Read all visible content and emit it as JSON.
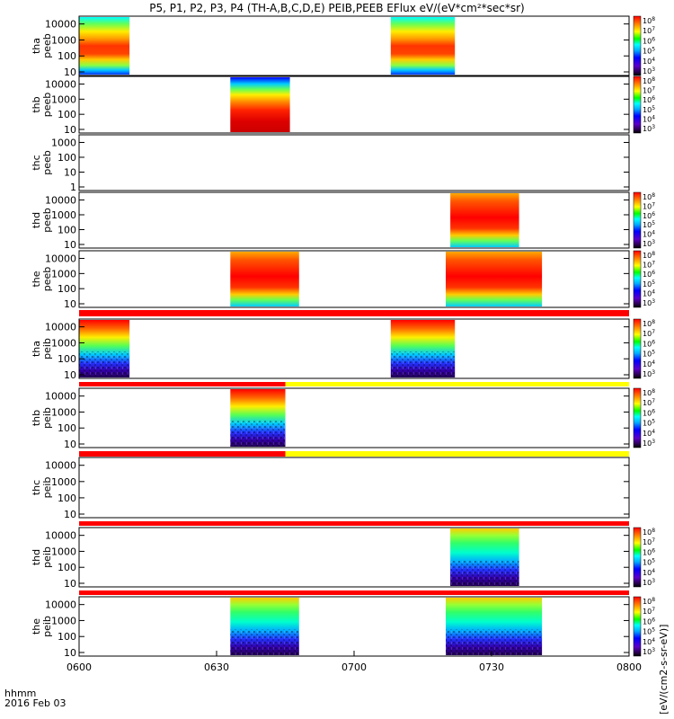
{
  "chart_data": {
    "type": "heatmap",
    "title": "P5, P1, P2, P3, P4 (TH-A,B,C,D,E) PEIB,PEEB EFlux eV/(eV*cm²*sec*sr)",
    "x_ticks": [
      "0600",
      "0630",
      "0700",
      "0730",
      "0800"
    ],
    "x_range": [
      "06:00",
      "08:00"
    ],
    "x_label_line1": "hhmm",
    "x_label_line2": "2016 Feb 03",
    "colorbar_label": "eV/(cm2-s-sr-eV)",
    "colorbar_label_full": "[eV/(cm2-s-sr-eV)]",
    "colorbar_exp_ticks": [
      "3",
      "4",
      "5",
      "6",
      "7",
      "8"
    ],
    "panels": [
      {
        "probe": "tha",
        "label1": "tha",
        "label2": "peeb",
        "y_ticks": [
          "10",
          "100",
          "1000",
          "10000"
        ],
        "intervals": [
          [
            "06:00",
            "06:11"
          ],
          [
            "07:08",
            "07:22"
          ]
        ],
        "style": "hot"
      },
      {
        "probe": "thb",
        "label1": "thb",
        "label2": "peeb",
        "y_ticks": [
          "10",
          "100",
          "1000",
          "10000"
        ],
        "intervals": [
          [
            "06:33",
            "06:46"
          ]
        ],
        "style": "hot"
      },
      {
        "probe": "thc",
        "label1": "thc",
        "label2": "peeb",
        "y_ticks": [
          "1",
          "10",
          "100",
          "1000"
        ],
        "intervals": [],
        "style": "none"
      },
      {
        "probe": "thd",
        "label1": "thd",
        "label2": "peeb",
        "y_ticks": [
          "10",
          "100",
          "1000",
          "10000"
        ],
        "intervals": [
          [
            "07:21",
            "07:36"
          ]
        ],
        "style": "hot"
      },
      {
        "probe": "the",
        "label1": "the",
        "label2": "peeb",
        "y_ticks": [
          "10",
          "100",
          "1000",
          "10000"
        ],
        "intervals": [
          [
            "06:33",
            "06:48"
          ],
          [
            "07:20",
            "07:41"
          ]
        ],
        "style": "hot"
      },
      {
        "probe": "tha",
        "label1": "tha",
        "label2": "peib",
        "y_ticks": [
          "10",
          "100",
          "1000",
          "10000"
        ],
        "intervals": [
          [
            "06:00",
            "06:11"
          ],
          [
            "07:08",
            "07:22"
          ]
        ],
        "style": "cool"
      },
      {
        "probe": "thb",
        "label1": "thb",
        "label2": "peib",
        "y_ticks": [
          "10",
          "100",
          "1000",
          "10000"
        ],
        "intervals": [
          [
            "06:33",
            "06:45"
          ]
        ],
        "style": "cool"
      },
      {
        "probe": "thc",
        "label1": "thc",
        "label2": "peib",
        "y_ticks": [
          "10",
          "100",
          "1000",
          "10000"
        ],
        "intervals": [],
        "style": "none"
      },
      {
        "probe": "thd",
        "label1": "thd",
        "label2": "peib",
        "y_ticks": [
          "10",
          "100",
          "1000",
          "10000"
        ],
        "intervals": [
          [
            "07:21",
            "07:36"
          ]
        ],
        "style": "cool"
      },
      {
        "probe": "the",
        "label1": "the",
        "label2": "peib",
        "y_ticks": [
          "10",
          "100",
          "1000",
          "10000"
        ],
        "intervals": [
          [
            "06:33",
            "06:48"
          ],
          [
            "07:20",
            "07:41"
          ]
        ],
        "style": "cool"
      }
    ],
    "mode_bars": [
      {
        "segments": [
          [
            "06:00",
            "08:00",
            "red"
          ]
        ]
      },
      {
        "segments": [
          [
            "06:00",
            "06:45",
            "red"
          ],
          [
            "06:45",
            "08:00",
            "yellow"
          ]
        ]
      },
      {
        "segments": [
          [
            "06:00",
            "06:45",
            "red"
          ],
          [
            "06:45",
            "08:00",
            "yellow"
          ]
        ]
      },
      {
        "segments": [
          [
            "06:00",
            "08:00",
            "red"
          ]
        ]
      },
      {
        "segments": [
          [
            "06:00",
            "08:00",
            "red"
          ]
        ]
      }
    ],
    "mode_bar_colors": {
      "red": "#ff0000",
      "yellow": "#ffff00"
    }
  }
}
